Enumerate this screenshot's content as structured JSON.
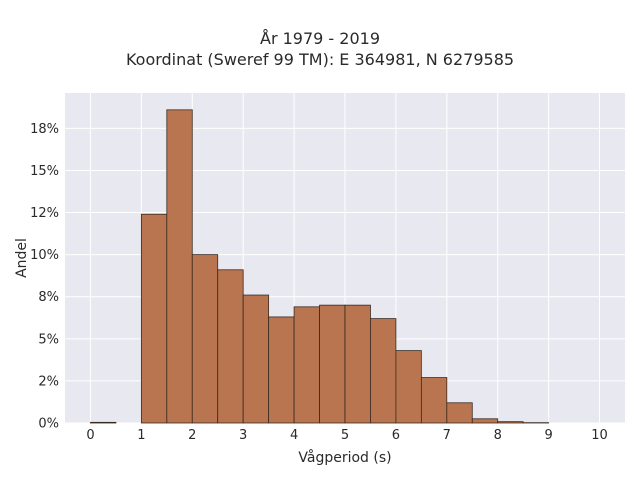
{
  "chart_data": {
    "type": "bar",
    "title": "År 1979 - 2019",
    "subtitle": "Koordinat (Sweref 99 TM): E 364981, N 6279585",
    "xlabel": "Vågperiod (s)",
    "ylabel": "Andel",
    "xlim": [
      -0.5,
      10.5
    ],
    "ylim": [
      0,
      0.196
    ],
    "x_ticks": [
      0,
      1,
      2,
      3,
      4,
      5,
      6,
      7,
      8,
      9,
      10
    ],
    "y_ticks": [
      {
        "value": 0.0,
        "label": "0%"
      },
      {
        "value": 0.025,
        "label": "2%"
      },
      {
        "value": 0.05,
        "label": "5%"
      },
      {
        "value": 0.075,
        "label": "8%"
      },
      {
        "value": 0.1,
        "label": "10%"
      },
      {
        "value": 0.125,
        "label": "12%"
      },
      {
        "value": 0.15,
        "label": "15%"
      },
      {
        "value": 0.175,
        "label": "18%"
      }
    ],
    "bin_width": 0.5,
    "bins": [
      {
        "start": 0.0,
        "value": 0.0004
      },
      {
        "start": 1.0,
        "value": 0.124
      },
      {
        "start": 1.5,
        "value": 0.186
      },
      {
        "start": 2.0,
        "value": 0.1
      },
      {
        "start": 2.5,
        "value": 0.091
      },
      {
        "start": 3.0,
        "value": 0.076
      },
      {
        "start": 3.5,
        "value": 0.063
      },
      {
        "start": 4.0,
        "value": 0.069
      },
      {
        "start": 4.5,
        "value": 0.07
      },
      {
        "start": 5.0,
        "value": 0.07
      },
      {
        "start": 5.5,
        "value": 0.062
      },
      {
        "start": 6.0,
        "value": 0.043
      },
      {
        "start": 6.5,
        "value": 0.027
      },
      {
        "start": 7.0,
        "value": 0.012
      },
      {
        "start": 7.5,
        "value": 0.0025
      },
      {
        "start": 8.0,
        "value": 0.0008
      },
      {
        "start": 8.5,
        "value": 0.0002
      }
    ],
    "grid": true,
    "colors": {
      "bar_fill": "#B87550",
      "bar_stroke": "#3a2a20",
      "plot_bg": "#E8E8F0",
      "grid": "#ffffff"
    }
  }
}
